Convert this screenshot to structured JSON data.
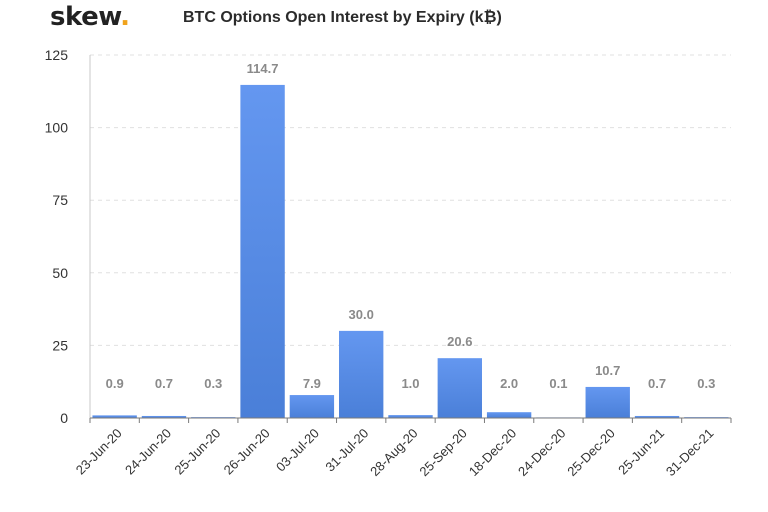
{
  "brand": {
    "name": "skew",
    "dot": ".",
    "dot_color": "#f0a31c"
  },
  "chart_data": {
    "type": "bar",
    "title": "BTC Options Open Interest by Expiry (k₿)",
    "xlabel": "",
    "ylabel": "",
    "ylim": [
      0,
      125
    ],
    "yticks": [
      0,
      25,
      50,
      75,
      100,
      125
    ],
    "grid": true,
    "bar_color": "#5b8fe6",
    "categories": [
      "23-Jun-20",
      "24-Jun-20",
      "25-Jun-20",
      "26-Jun-20",
      "03-Jul-20",
      "31-Jul-20",
      "28-Aug-20",
      "25-Sep-20",
      "18-Dec-20",
      "24-Dec-20",
      "25-Dec-20",
      "25-Jun-21",
      "31-Dec-21"
    ],
    "values": [
      0.9,
      0.7,
      0.3,
      114.7,
      7.9,
      30.0,
      1.0,
      20.6,
      2.0,
      0.1,
      10.7,
      0.7,
      0.3
    ],
    "data_labels": [
      "0.9",
      "0.7",
      "0.3",
      "114.7",
      "7.9",
      "30.0",
      "1.0",
      "20.6",
      "2.0",
      "0.1",
      "10.7",
      "0.7",
      "0.3"
    ]
  }
}
